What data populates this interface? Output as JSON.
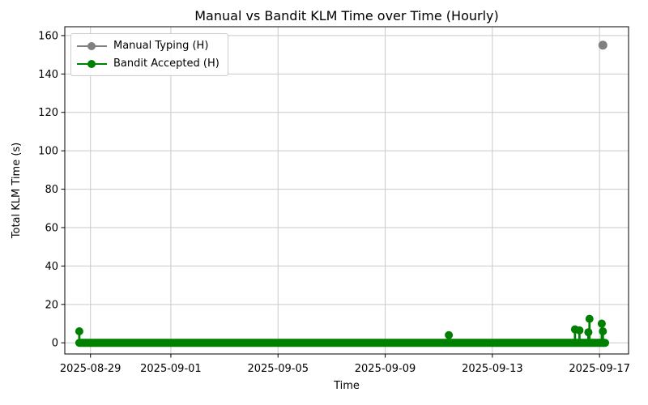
{
  "chart_data": {
    "type": "line",
    "title": "Manual vs Bandit KLM Time over Time (Hourly)",
    "xlabel": "Time",
    "ylabel": "Total KLM Time (s)",
    "x_tick_labels": [
      "2025-08-29",
      "2025-09-01",
      "2025-09-05",
      "2025-09-09",
      "2025-09-13",
      "2025-09-17"
    ],
    "y_ticks": [
      0,
      20,
      40,
      60,
      80,
      100,
      120,
      140,
      160
    ],
    "xlim": [
      "2025-08-28 01:00",
      "2025-09-18 02:00"
    ],
    "ylim": [
      -5.8,
      164.6
    ],
    "grid": true,
    "grid_color": "#c9c9c9",
    "spine_color": "#000000",
    "background_color": "#ffffff",
    "legend_position": "upper-left",
    "series": [
      {
        "name": "Manual Typing (H)",
        "color": "#808080",
        "marker": "circle",
        "points": [
          {
            "date": "2025-09-17 03:00",
            "value": 155
          }
        ]
      },
      {
        "name": "Bandit Accepted (H)",
        "color": "#008000",
        "marker": "circle",
        "interval": "hourly",
        "baseline_value": 0,
        "baseline_start": "2025-08-28 14:00",
        "baseline_end": "2025-09-17 05:00",
        "nonzero_points": [
          {
            "date": "2025-08-28 14:00",
            "value": 6
          },
          {
            "date": "2025-09-11 09:00",
            "value": 4
          },
          {
            "date": "2025-09-16 02:00",
            "value": 7
          },
          {
            "date": "2025-09-16 06:00",
            "value": 6.5
          },
          {
            "date": "2025-09-16 14:00",
            "value": 5.5
          },
          {
            "date": "2025-09-16 15:00",
            "value": 12.5
          },
          {
            "date": "2025-09-17 02:00",
            "value": 10
          },
          {
            "date": "2025-09-17 03:00",
            "value": 6
          }
        ]
      }
    ]
  }
}
